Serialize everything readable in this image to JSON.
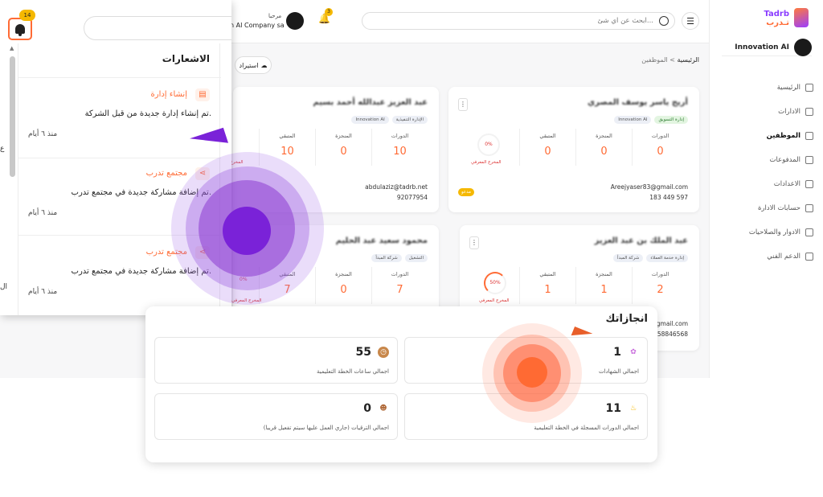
{
  "app": {
    "logo_en": "Tadrb",
    "logo_ar": "تـدرب",
    "company_name": "Innovation AI",
    "top_greeting": "مرحبا",
    "top_company": "n AI Company sa",
    "top_notif_badge": "3",
    "menu_icon": "☰",
    "search_placeholder": "ابحث عن اي شئ...",
    "import_label": "استيراد"
  },
  "sidebar": {
    "items": [
      {
        "label": "الرئيسية",
        "icon": "home-icon"
      },
      {
        "label": "الادارات",
        "icon": "departments-icon"
      },
      {
        "label": "الموظفين",
        "icon": "employees-icon",
        "active": true
      },
      {
        "label": "المدفوعات",
        "icon": "payments-icon"
      },
      {
        "label": "الاعدادات",
        "icon": "settings-icon"
      },
      {
        "label": "حسابات الادارة",
        "icon": "admin-accounts-icon"
      },
      {
        "label": "الادوار والصلاحيات",
        "icon": "roles-icon"
      },
      {
        "label": "الدعم الفني",
        "icon": "support-icon"
      }
    ]
  },
  "breadcrumb": {
    "home": "الرئيسية",
    "sep": ">",
    "current": "الموظفين"
  },
  "cards": [
    {
      "name": "أريج ياسر يوسف المصري",
      "tags": [
        "إدارة التسويق",
        "Innovation AI"
      ],
      "stats": [
        {
          "label": "الدورات",
          "value": "0"
        },
        {
          "label": "المنجزة",
          "value": "0"
        },
        {
          "label": "المتبقي",
          "value": "0"
        }
      ],
      "progress_text": "0%",
      "progress_label": "المخرج المعرفي",
      "email": "Areejyaser83@gmail.com",
      "phone": "183 449 597",
      "badge": "مدعو"
    },
    {
      "name": "عبد العزيز عبدالله أحمد بسيم",
      "tags": [
        "الإدارة التنفيذية",
        "Innovation AI"
      ],
      "stats": [
        {
          "label": "الدورات",
          "value": "10"
        },
        {
          "label": "المنجزة",
          "value": "0"
        },
        {
          "label": "المتبقي",
          "value": "10"
        }
      ],
      "progress_label": "المخرج",
      "email": "abdulaziz@tadrb.net",
      "phone": "92077954"
    },
    {
      "name": "عبد الملك بن عبد العزيز",
      "tags": [
        "إدارة خدمة العملاء",
        "شركة المبدأ"
      ],
      "stats": [
        {
          "label": "الدورات",
          "value": "2"
        },
        {
          "label": "المنجزة",
          "value": "1"
        },
        {
          "label": "المتبقي",
          "value": "1"
        }
      ],
      "progress_text": "50%",
      "progress_label": "المخرج المعرفي",
      "email_partial": "@gmail.com",
      "phone_partial": "58846568"
    },
    {
      "name": "محمود سعيد عبد الحليم",
      "tags": [
        "التشغيل",
        "شركة المبدأ"
      ],
      "stats": [
        {
          "label": "الدورات",
          "value": "7"
        },
        {
          "label": "المنجزة",
          "value": "0"
        },
        {
          "label": "المتبقي",
          "value": "7"
        }
      ],
      "progress_text": "0%",
      "progress_label": "المخرج المعرفي"
    }
  ],
  "notifications": {
    "title": "الاشعارات",
    "count": "14",
    "items": [
      {
        "title": "إنشاء إدارة",
        "icon": "building-icon",
        "body": "تم إنشاء إدارة جديدة من قبل الشركة.",
        "time": "منذ ٦ أيام"
      },
      {
        "title": "مجتمع تدرب",
        "icon": "share-icon",
        "body": "تم إضافة مشاركة جديدة في مجتمع تدرب.",
        "time": "منذ ٦ أيام"
      },
      {
        "title": "مجتمع تدرب",
        "icon": "share-icon",
        "body": "تم إضافة مشاركة جديدة في مجتمع تدرب.",
        "time": "منذ ٦ أيام"
      }
    ],
    "edge_chars": [
      "ع",
      "ال"
    ]
  },
  "achievements": {
    "title": "انجازاتك",
    "items": [
      {
        "value": "1",
        "label": "اجمالي الشهادات",
        "icon": "certificate-icon",
        "color": "#c86bdc"
      },
      {
        "value": "55",
        "label": "اجمالي ساعات الخطة التعليمية",
        "icon": "clock-icon",
        "color": "#c8874a"
      },
      {
        "value": "11",
        "label": "اجمالي الدورات المسجلة في الخطة التعليمية",
        "icon": "flame-icon",
        "color": "#f5b800"
      },
      {
        "value": "0",
        "label": "اجمالي الترقيات (جاري العمل عليها سيتم تفعيل قريبا)",
        "icon": "mask-icon",
        "color": "#b06a3a"
      }
    ]
  },
  "colors": {
    "accent": "#ff6b35",
    "brand_purple": "#7a22d8",
    "badge_yellow": "#f5b800"
  }
}
